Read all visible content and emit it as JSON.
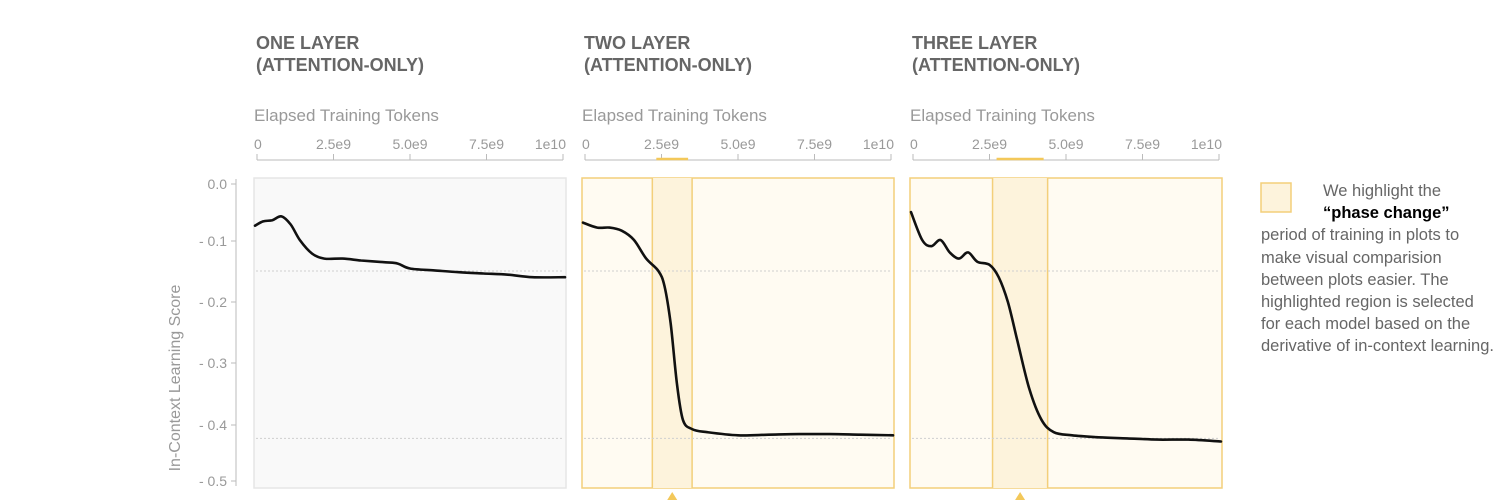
{
  "chart_data": {
    "type": "line",
    "ylabel": "In-Context Learning Score",
    "ylim": [
      -0.5,
      0.0
    ],
    "yticks": [
      "0.0",
      "- 0.1",
      "- 0.2",
      "- 0.3",
      "- 0.4",
      "- 0.5"
    ],
    "xlabel": "Elapsed Training Tokens",
    "xlim": [
      0,
      10000000000.0
    ],
    "xticks": [
      0,
      2500000000.0,
      5000000000.0,
      7500000000.0,
      10000000000.0
    ],
    "xtick_labels": [
      "0",
      "2.5e9",
      "5.0e9",
      "7.5e9",
      "1e10"
    ],
    "reference_lines": [
      -0.15,
      -0.42
    ],
    "colors": {
      "line": "#111111",
      "highlight_fill": "#fdf3dc",
      "highlight_edge": "#f3cf7a",
      "plot_bg": "#f9f9f9",
      "plot_bg_highlighted": "#fffbf2"
    },
    "panels": [
      {
        "title_line1": "ONE LAYER",
        "title_line2": "(ATTENTION-ONLY)",
        "highlight": null,
        "x": [
          0,
          200000000.0,
          500000000.0,
          800000000.0,
          1100000000.0,
          1400000000.0,
          1800000000.0,
          2200000000.0,
          2800000000.0,
          3400000000.0,
          4200000000.0,
          4600000000.0,
          5000000000.0,
          5800000000.0,
          6600000000.0,
          7400000000.0,
          8200000000.0,
          9000000000.0,
          10000000000.0
        ],
        "y": [
          -0.077,
          -0.07,
          -0.068,
          -0.062,
          -0.075,
          -0.1,
          -0.122,
          -0.13,
          -0.13,
          -0.133,
          -0.136,
          -0.138,
          -0.146,
          -0.149,
          -0.152,
          -0.154,
          -0.156,
          -0.16,
          -0.16
        ]
      },
      {
        "title_line1": "TWO LAYER",
        "title_line2": "(ATTENTION-ONLY)",
        "highlight": [
          2200000000.0,
          3500000000.0
        ],
        "x": [
          0,
          400000000.0,
          800000000.0,
          1200000000.0,
          1600000000.0,
          2000000000.0,
          2400000000.0,
          2600000000.0,
          2800000000.0,
          3000000000.0,
          3200000000.0,
          3500000000.0,
          4000000000.0,
          5000000000.0,
          6000000000.0,
          7000000000.0,
          8000000000.0,
          9000000000.0,
          10000000000.0
        ],
        "y": [
          -0.072,
          -0.08,
          -0.08,
          -0.085,
          -0.1,
          -0.13,
          -0.15,
          -0.175,
          -0.235,
          -0.33,
          -0.39,
          -0.405,
          -0.41,
          -0.415,
          -0.414,
          -0.413,
          -0.413,
          -0.414,
          -0.415
        ]
      },
      {
        "title_line1": "THREE LAYER",
        "title_line2": "(ATTENTION-ONLY)",
        "highlight": [
          2600000000.0,
          4400000000.0
        ],
        "x": [
          0,
          300000000.0,
          600000000.0,
          900000000.0,
          1200000000.0,
          1500000000.0,
          1800000000.0,
          2100000000.0,
          2500000000.0,
          2800000000.0,
          3100000000.0,
          3400000000.0,
          3800000000.0,
          4200000000.0,
          4600000000.0,
          5200000000.0,
          6000000000.0,
          7000000000.0,
          8000000000.0,
          9000000000.0,
          10000000000.0
        ],
        "y": [
          -0.055,
          -0.1,
          -0.11,
          -0.1,
          -0.12,
          -0.13,
          -0.12,
          -0.135,
          -0.14,
          -0.16,
          -0.2,
          -0.26,
          -0.34,
          -0.39,
          -0.41,
          -0.415,
          -0.418,
          -0.42,
          -0.422,
          -0.422,
          -0.425
        ]
      }
    ]
  },
  "legend": {
    "line1": "We highlight the",
    "line2_bold": "“phase change”",
    "rest": "period of training in plots to make visual comparision between plots easier. The highlighted region is selected for each model based on the derivative of in-context learning."
  }
}
